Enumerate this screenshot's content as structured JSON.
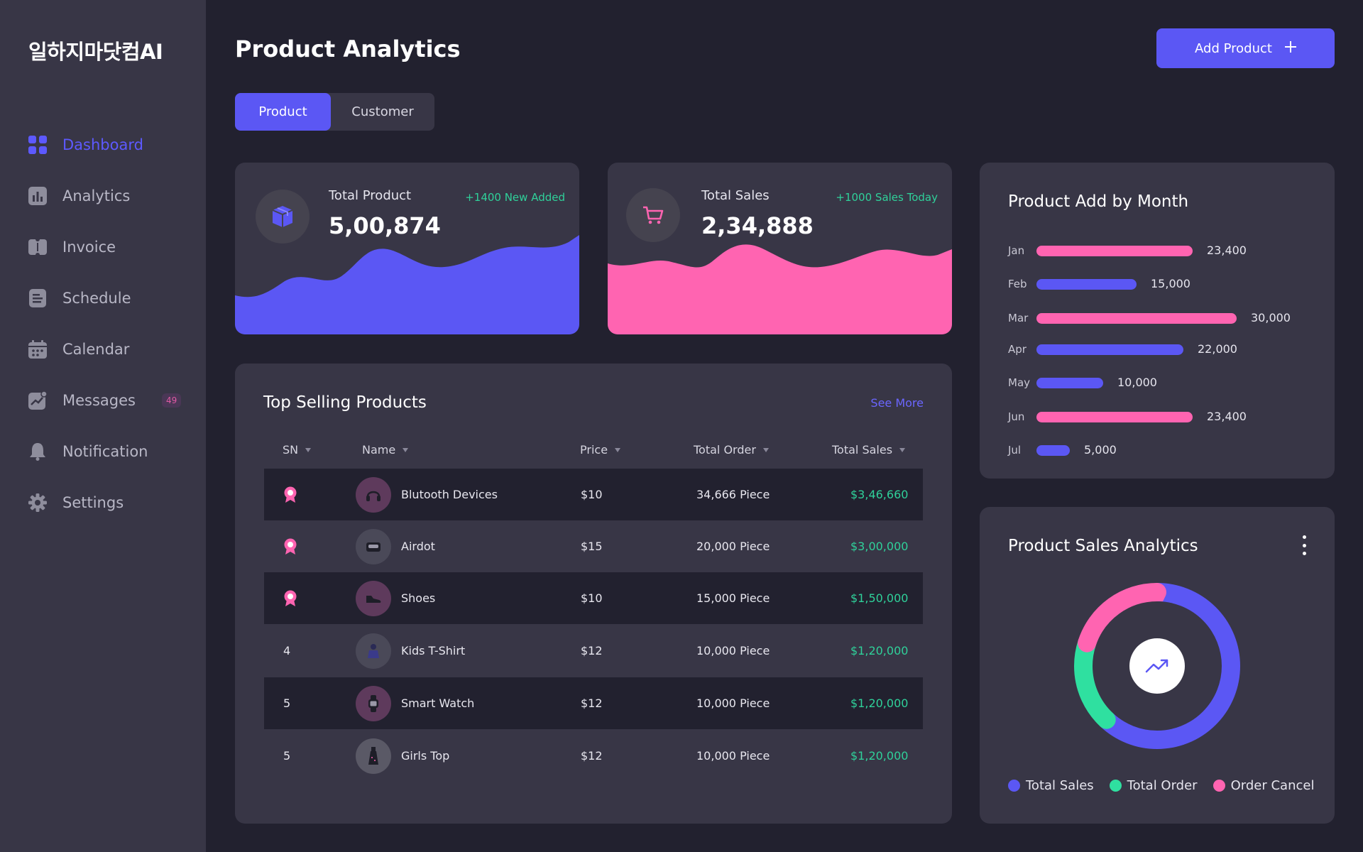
{
  "brand": "일하지마닷컴AI",
  "sidebar": {
    "items": [
      {
        "label": "Dashboard",
        "icon": "grid-icon",
        "active": true
      },
      {
        "label": "Analytics",
        "icon": "bar-chart-icon"
      },
      {
        "label": "Invoice",
        "icon": "ticket-icon"
      },
      {
        "label": "Schedule",
        "icon": "document-icon"
      },
      {
        "label": "Calendar",
        "icon": "calendar-icon"
      },
      {
        "label": "Messages",
        "icon": "trend-chat-icon",
        "badge": "49"
      },
      {
        "label": "Notification",
        "icon": "bell-icon"
      },
      {
        "label": "Settings",
        "icon": "gear-icon"
      }
    ]
  },
  "header": {
    "title": "Product Analytics",
    "add_button": "Add Product"
  },
  "tabs": [
    {
      "label": "Product",
      "active": true
    },
    {
      "label": "Customer",
      "active": false
    }
  ],
  "stats": [
    {
      "label": "Total Product",
      "value": "5,00,874",
      "delta": "+1400 New Added",
      "icon": "box-icon",
      "color": "#5b57f4"
    },
    {
      "label": "Total Sales",
      "value": "2,34,888",
      "delta": "+1000 Sales Today",
      "icon": "cart-icon",
      "color": "#ff64b1"
    }
  ],
  "top_selling": {
    "title": "Top Selling Products",
    "see_more": "See More",
    "columns": [
      "SN",
      "Name",
      "Price",
      "Total Order",
      "Total Sales"
    ],
    "rows": [
      {
        "sn": "",
        "rank_icon": "award-icon",
        "name": "Blutooth Devices",
        "price": "$10",
        "order": "34,666 Piece",
        "sales": "$3,46,660",
        "avatar": "headphones-icon"
      },
      {
        "sn": "",
        "rank_icon": "award-icon",
        "name": "Airdot",
        "price": "$15",
        "order": "20,000 Piece",
        "sales": "$3,00,000",
        "avatar": "earbuds-icon"
      },
      {
        "sn": "",
        "rank_icon": "award-icon",
        "name": "Shoes",
        "price": "$10",
        "order": "15,000 Piece",
        "sales": "$1,50,000",
        "avatar": "shoe-icon"
      },
      {
        "sn": "4",
        "name": "Kids T-Shirt",
        "price": "$12",
        "order": "10,000 Piece",
        "sales": "$1,20,000",
        "avatar": "tshirt-icon"
      },
      {
        "sn": "5",
        "name": "Smart Watch",
        "price": "$12",
        "order": "10,000 Piece",
        "sales": "$1,20,000",
        "avatar": "watch-icon"
      },
      {
        "sn": "5",
        "name": "Girls Top",
        "price": "$12",
        "order": "10,000 Piece",
        "sales": "$1,20,000",
        "avatar": "dress-icon"
      }
    ]
  },
  "month_chart": {
    "title": "Product Add  by Month",
    "max": 30000,
    "items": [
      {
        "month": "Jan",
        "value": 23400,
        "label": "23,400",
        "color": "#ff64b1"
      },
      {
        "month": "Feb",
        "value": 15000,
        "label": "15,000",
        "color": "#5b57f4"
      },
      {
        "month": "Mar",
        "value": 30000,
        "label": "30,000",
        "color": "#ff64b1"
      },
      {
        "month": "Apr",
        "value": 22000,
        "label": "22,000",
        "color": "#5b57f4"
      },
      {
        "month": "May",
        "value": 10000,
        "label": "10,000",
        "color": "#5b57f4"
      },
      {
        "month": "Jun",
        "value": 23400,
        "label": "23,400",
        "color": "#ff64b1"
      },
      {
        "month": "Jul",
        "value": 5000,
        "label": "5,000",
        "color": "#5b57f4"
      }
    ]
  },
  "sales_analytics": {
    "title": "Product Sales Analytics",
    "center_icon": "trend-up-icon",
    "legend": [
      {
        "label": "Total Sales",
        "color": "#5b57f4",
        "share": 0.62
      },
      {
        "label": "Total Order",
        "color": "#2fe0a0",
        "share": 0.18
      },
      {
        "label": "Order Cancel",
        "color": "#ff64b1",
        "share": 0.2
      }
    ]
  }
}
